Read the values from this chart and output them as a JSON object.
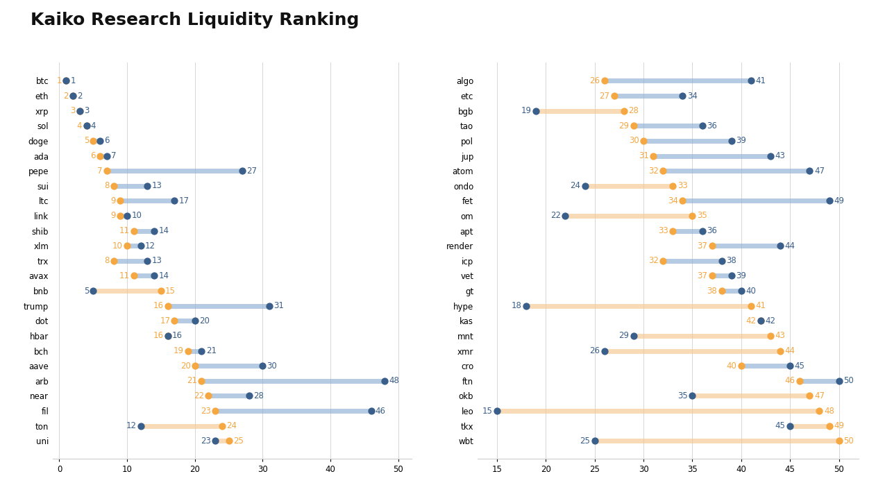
{
  "title": "Kaiko Research Liquidity Ranking",
  "left_panel": {
    "labels": [
      "btc",
      "eth",
      "xrp",
      "sol",
      "doge",
      "ada",
      "pepe",
      "sui",
      "ltc",
      "link",
      "shib",
      "xlm",
      "trx",
      "avax",
      "bnb",
      "trump",
      "dot",
      "hbar",
      "bch",
      "aave",
      "arb",
      "near",
      "fil",
      "ton",
      "uni"
    ],
    "blue_vals": [
      1,
      2,
      3,
      4,
      6,
      7,
      27,
      13,
      17,
      10,
      14,
      12,
      13,
      14,
      5,
      31,
      20,
      16,
      21,
      30,
      48,
      28,
      46,
      12,
      23
    ],
    "orange_vals": [
      1,
      2,
      3,
      4,
      5,
      6,
      7,
      8,
      9,
      9,
      11,
      10,
      8,
      11,
      15,
      16,
      17,
      16,
      19,
      20,
      21,
      22,
      23,
      24,
      25
    ],
    "xlim": [
      -1,
      52
    ],
    "xticks": [
      0,
      10,
      20,
      30,
      40,
      50
    ]
  },
  "right_panel": {
    "labels": [
      "algo",
      "etc",
      "bgb",
      "tao",
      "pol",
      "jup",
      "atom",
      "ondo",
      "fet",
      "om",
      "apt",
      "render",
      "icp",
      "vet",
      "gt",
      "hype",
      "kas",
      "mnt",
      "xmr",
      "cro",
      "ftn",
      "okb",
      "leo",
      "tkx",
      "wbt"
    ],
    "blue_vals": [
      41,
      34,
      19,
      36,
      39,
      43,
      47,
      24,
      49,
      22,
      36,
      44,
      38,
      39,
      40,
      18,
      42,
      29,
      26,
      45,
      50,
      35,
      15,
      45,
      25
    ],
    "orange_vals": [
      26,
      27,
      28,
      29,
      30,
      31,
      32,
      33,
      34,
      35,
      33,
      37,
      32,
      37,
      38,
      41,
      42,
      43,
      44,
      40,
      46,
      47,
      48,
      49,
      50
    ],
    "xlim": [
      13,
      52
    ],
    "xticks": [
      15,
      20,
      25,
      30,
      35,
      40,
      45,
      50
    ]
  },
  "blue_color": "#3a5f8a",
  "orange_color": "#f5a742",
  "line_blue_color": "#8eafd4",
  "line_orange_color": "#f5c990",
  "background_color": "#ffffff",
  "title_fontsize": 18,
  "label_fontsize": 8.5,
  "tick_fontsize": 8.5,
  "dot_size": 55,
  "line_width": 5
}
